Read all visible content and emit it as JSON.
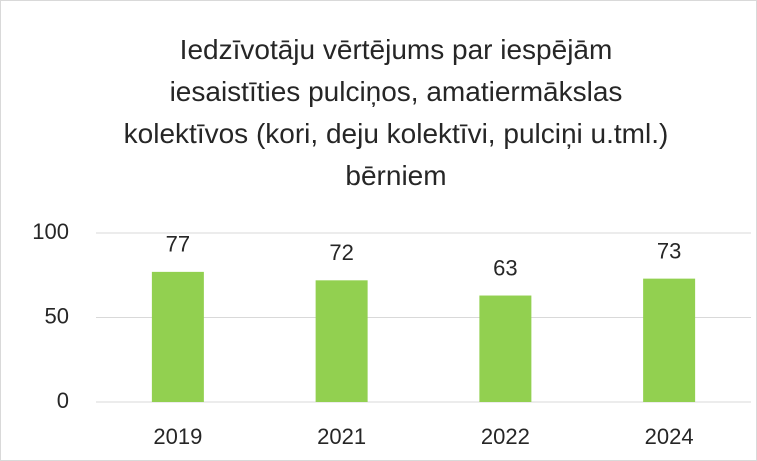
{
  "chart_data": {
    "type": "bar",
    "title": "Iedzīvotāju vērtējums par iespējām iesaistīties pulciņos, amatiermākslas kolektīvos (kori, deju kolektīvi, pulciņi u.tml.) bērniem",
    "categories": [
      "2019",
      "2021",
      "2022",
      "2024"
    ],
    "values": [
      77,
      72,
      63,
      73
    ],
    "color": "#92d050",
    "ylim": [
      0,
      100
    ],
    "yticks": [
      0,
      50,
      100
    ],
    "grid": true
  }
}
